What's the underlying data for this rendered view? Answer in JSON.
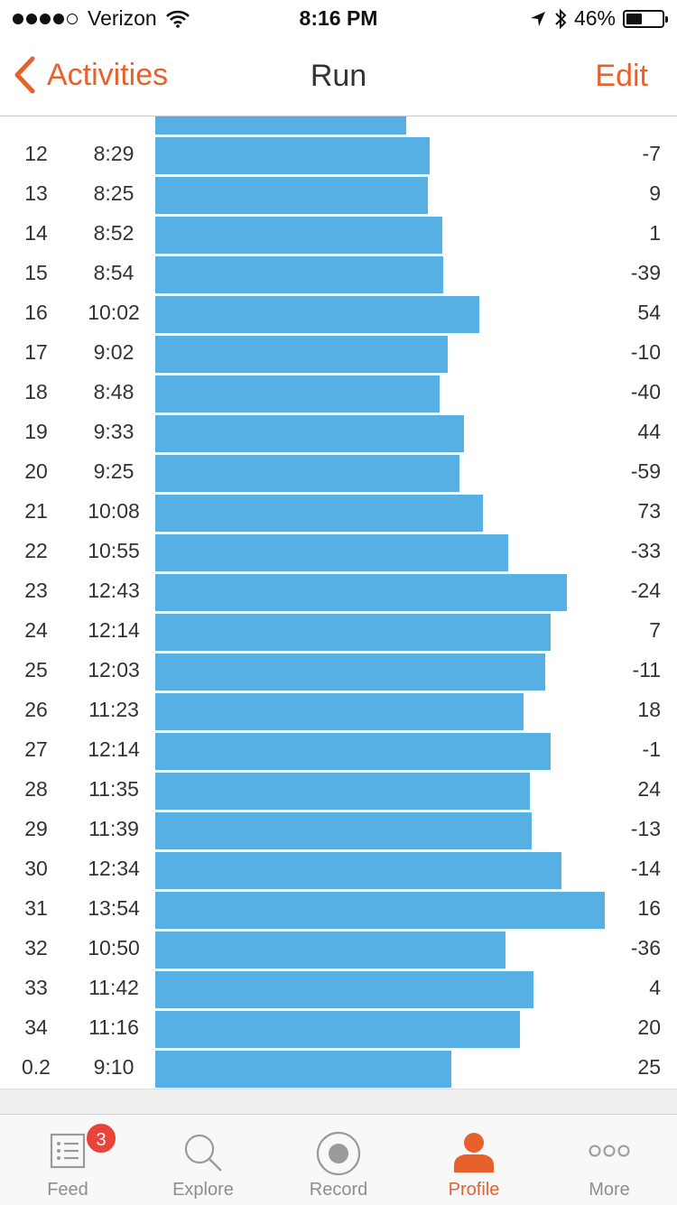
{
  "status_bar": {
    "carrier": "Verizon",
    "time": "8:16 PM",
    "battery_text": "46%",
    "battery_level": 0.46,
    "signal_bars": 4
  },
  "nav": {
    "back_label": "Activities",
    "title": "Run",
    "edit_label": "Edit"
  },
  "splits": [
    {
      "mile": "",
      "pace": "",
      "elev": ""
    },
    {
      "mile": "12",
      "pace": "8:29",
      "elev": "-7"
    },
    {
      "mile": "13",
      "pace": "8:25",
      "elev": "9"
    },
    {
      "mile": "14",
      "pace": "8:52",
      "elev": "1"
    },
    {
      "mile": "15",
      "pace": "8:54",
      "elev": "-39"
    },
    {
      "mile": "16",
      "pace": "10:02",
      "elev": "54"
    },
    {
      "mile": "17",
      "pace": "9:02",
      "elev": "-10"
    },
    {
      "mile": "18",
      "pace": "8:48",
      "elev": "-40"
    },
    {
      "mile": "19",
      "pace": "9:33",
      "elev": "44"
    },
    {
      "mile": "20",
      "pace": "9:25",
      "elev": "-59"
    },
    {
      "mile": "21",
      "pace": "10:08",
      "elev": "73"
    },
    {
      "mile": "22",
      "pace": "10:55",
      "elev": "-33"
    },
    {
      "mile": "23",
      "pace": "12:43",
      "elev": "-24"
    },
    {
      "mile": "24",
      "pace": "12:14",
      "elev": "7"
    },
    {
      "mile": "25",
      "pace": "12:03",
      "elev": "-11"
    },
    {
      "mile": "26",
      "pace": "11:23",
      "elev": "18"
    },
    {
      "mile": "27",
      "pace": "12:14",
      "elev": "-1"
    },
    {
      "mile": "28",
      "pace": "11:35",
      "elev": "24"
    },
    {
      "mile": "29",
      "pace": "11:39",
      "elev": "-13"
    },
    {
      "mile": "30",
      "pace": "12:34",
      "elev": "-14"
    },
    {
      "mile": "31",
      "pace": "13:54",
      "elev": "16"
    },
    {
      "mile": "32",
      "pace": "10:50",
      "elev": "-36"
    },
    {
      "mile": "33",
      "pace": "11:42",
      "elev": "4"
    },
    {
      "mile": "34",
      "pace": "11:16",
      "elev": "20"
    },
    {
      "mile": "0.2",
      "pace": "9:10",
      "elev": "25"
    }
  ],
  "bar_value_seconds": [
    465,
    509,
    505,
    532,
    534,
    602,
    542,
    528,
    573,
    565,
    608,
    655,
    763,
    734,
    723,
    683,
    734,
    695,
    699,
    754,
    834,
    650,
    702,
    676,
    550
  ],
  "bar_scale_max_seconds": 834,
  "colors": {
    "accent": "#e8612d",
    "bar": "#57b0e3",
    "badge": "#e8443a"
  },
  "tabs": [
    {
      "label": "Feed",
      "icon": "feed-icon",
      "active": false
    },
    {
      "label": "Explore",
      "icon": "search-icon",
      "active": false
    },
    {
      "label": "Record",
      "icon": "record-icon",
      "active": false
    },
    {
      "label": "Profile",
      "icon": "profile-icon",
      "active": true
    },
    {
      "label": "More",
      "icon": "more-icon",
      "active": false
    }
  ],
  "feed_badge": "3"
}
